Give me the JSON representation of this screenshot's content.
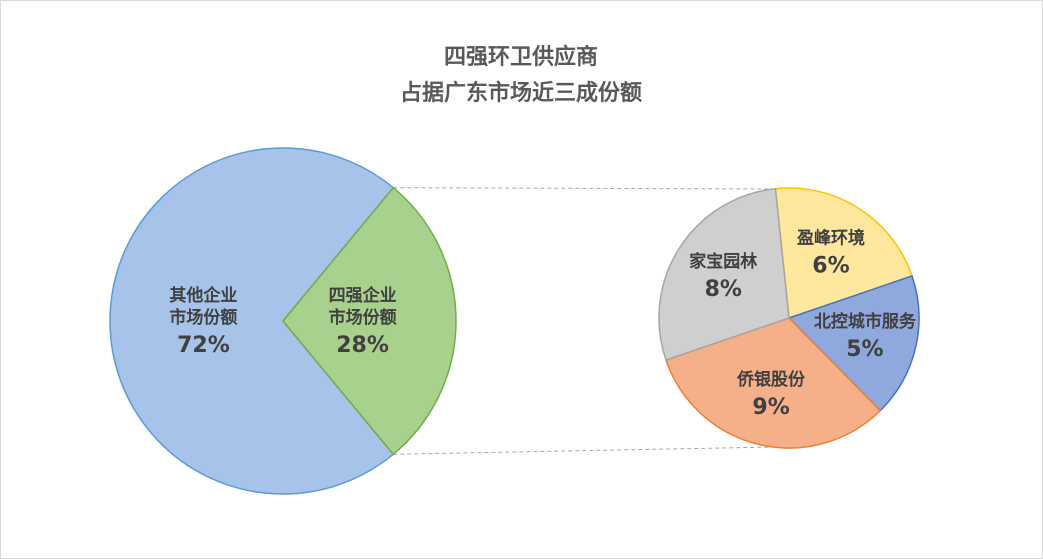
{
  "chart_data": {
    "type": "pie-of-pie",
    "title": [
      "四强环卫供应商",
      "占据广东市场近三成份额"
    ],
    "pies": [
      {
        "labels": [
          [
            "其他企业",
            "市场份额"
          ],
          [
            "四强企业",
            "市场份额"
          ]
        ],
        "values": [
          72,
          28
        ],
        "value_labels": [
          "72%",
          "28%"
        ],
        "colors": [
          "#a7c3e9",
          "#a9d18e"
        ],
        "edge_colors": [
          "#5b9bd5",
          "#70ad47"
        ]
      },
      {
        "labels": [
          [
            "盈峰环境"
          ],
          [
            "北控城市服务"
          ],
          [
            "侨银股份"
          ],
          [
            "家宝园林"
          ]
        ],
        "values": [
          6,
          5,
          9,
          8
        ],
        "value_labels": [
          "6%",
          "5%",
          "9%",
          "8%"
        ],
        "colors": [
          "#ffe79e",
          "#8fa9dc",
          "#f5b08a",
          "#cfcfcf"
        ],
        "edge_colors": [
          "#ffc000",
          "#4472c4",
          "#ed7d31",
          "#a5a5a5"
        ]
      }
    ]
  }
}
